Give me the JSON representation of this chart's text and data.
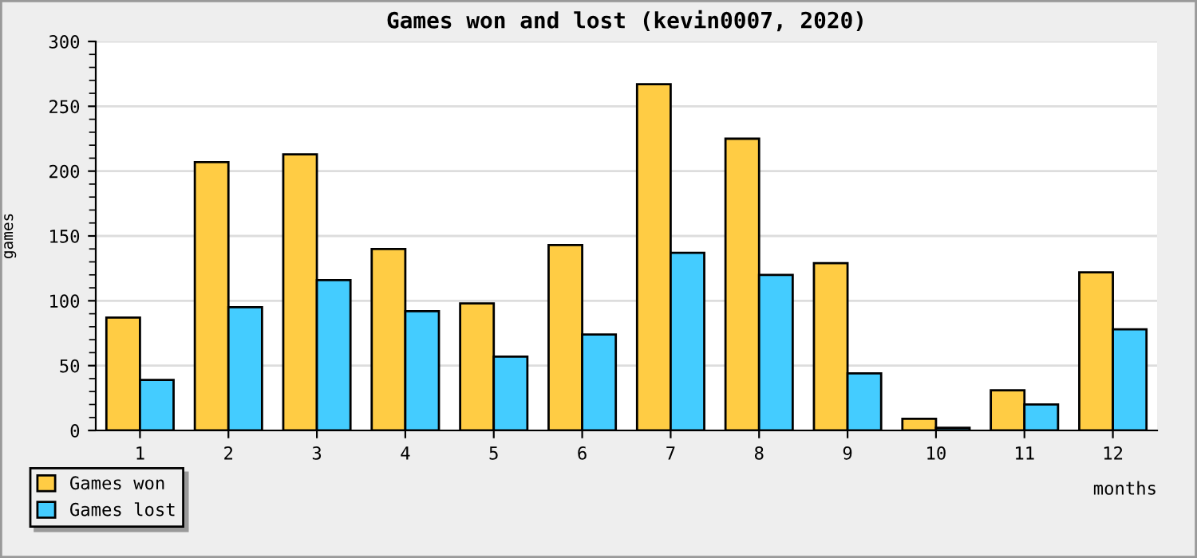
{
  "chart_data": {
    "type": "bar",
    "title": "Games won and lost (kevin0007, 2020)",
    "xlabel": "months",
    "ylabel": "games",
    "categories": [
      "1",
      "2",
      "3",
      "4",
      "5",
      "6",
      "7",
      "8",
      "9",
      "10",
      "11",
      "12"
    ],
    "series": [
      {
        "name": "Games won",
        "color": "#ffcc44",
        "values": [
          87,
          207,
          213,
          140,
          98,
          143,
          267,
          225,
          129,
          9,
          31,
          122
        ]
      },
      {
        "name": "Games lost",
        "color": "#44ccff",
        "values": [
          39,
          95,
          116,
          92,
          57,
          74,
          137,
          120,
          44,
          2,
          20,
          78
        ]
      }
    ],
    "ylim": [
      0,
      300
    ],
    "yticks": [
      0,
      50,
      100,
      150,
      200,
      250,
      300
    ],
    "grid": "y",
    "legend": "bottom left"
  }
}
